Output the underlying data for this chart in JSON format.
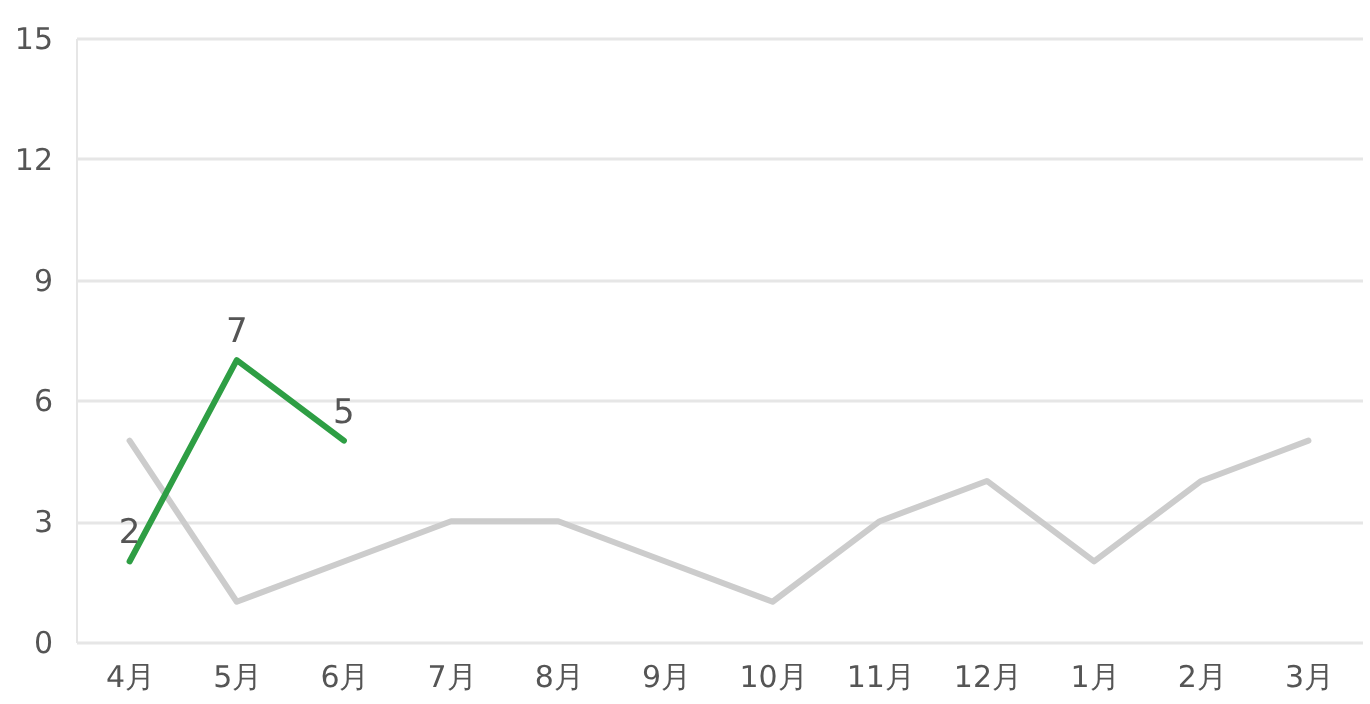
{
  "chart_data": {
    "type": "line",
    "categories": [
      "4月",
      "5月",
      "6月",
      "7月",
      "8月",
      "9月",
      "10月",
      "11月",
      "12月",
      "1月",
      "2月",
      "3月"
    ],
    "series": [
      {
        "color": "#cccccc",
        "values": [
          5,
          1,
          2,
          3,
          3,
          2,
          1,
          3,
          4,
          2,
          4,
          5
        ]
      },
      {
        "color": "#2e9e44",
        "values": [
          2,
          7,
          5,
          null,
          null,
          null,
          null,
          null,
          null,
          null,
          null,
          null
        ],
        "value_labels": [
          "2",
          "7",
          "5",
          null,
          null,
          null,
          null,
          null,
          null,
          null,
          null,
          null
        ]
      }
    ],
    "ylim": [
      0,
      15
    ],
    "yticks": [
      0,
      3,
      6,
      9,
      12,
      15
    ],
    "grid": "y",
    "marker": "none",
    "line_style": "solid"
  }
}
